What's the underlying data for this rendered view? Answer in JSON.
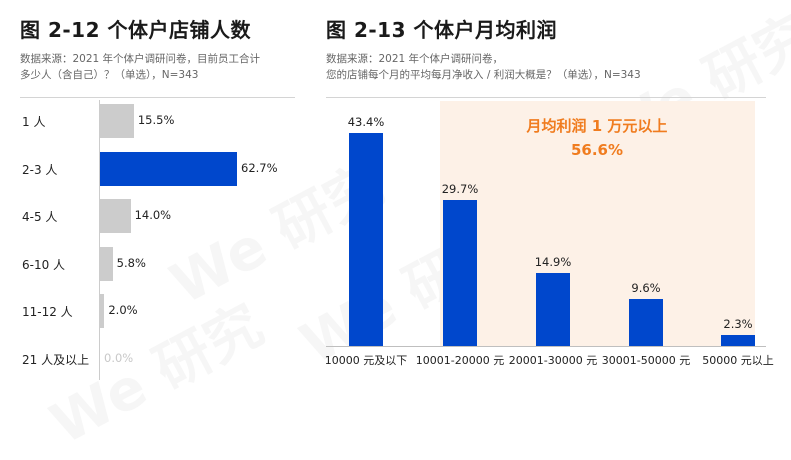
{
  "watermark": "We 研究",
  "colors": {
    "highlight_bar": "#0047cc",
    "other_bar": "#cccccc",
    "na_bar": "#bbbbbb",
    "accent_text": "#f07c1f",
    "highlight_bg": "#fdf1e7"
  },
  "chart_data": [
    {
      "type": "bar",
      "orientation": "horizontal",
      "title": "图 2-12  个体户店铺人数",
      "source": [
        "数据来源：2021 年个体户调研问卷，目前员工合计",
        "多少人（含自己）？（单选），N=343"
      ],
      "categories": [
        "1 人",
        "2-3 人",
        "4-5 人",
        "6-10 人",
        "11-12 人",
        "21 人及以上"
      ],
      "values": [
        15.5,
        62.7,
        14.0,
        5.8,
        2.0,
        0.0
      ],
      "value_labels": [
        "15.5%",
        "62.7%",
        "14.0%",
        "5.8%",
        "2.0%",
        "0.0%"
      ],
      "highlight_index": 1,
      "xlim": [
        0,
        62.7
      ]
    },
    {
      "type": "bar",
      "orientation": "vertical",
      "title": "图 2-13  个体户月均利润",
      "source": [
        "数据来源：2021 年个体户调研问卷，",
        "您的店铺每个月的平均每月净收入 / 利润大概是？（单选），N=343"
      ],
      "categories": [
        "10000 元及以下",
        "10001-20000 元",
        "20001-30000 元",
        "30001-50000 元",
        "50000 元以上"
      ],
      "values": [
        43.4,
        29.7,
        14.9,
        9.6,
        2.3
      ],
      "value_labels": [
        "43.4%",
        "29.7%",
        "14.9%",
        "9.6%",
        "2.3%"
      ],
      "ylim": [
        0,
        43.4
      ],
      "annotation": {
        "line1": "月均利润 1 万元以上",
        "line2": "56.6%"
      }
    }
  ]
}
